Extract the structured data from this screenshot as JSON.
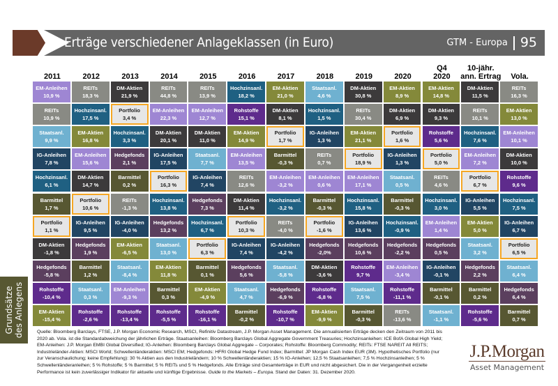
{
  "header": {
    "title": "Erträge verschiedener Anlageklassen (in Euro)",
    "series_label": "GTM - Europa",
    "page_number": "95"
  },
  "side_tab": "Grundsätze des Anlegens",
  "colors": {
    "EM-Anleihen": "#9e86d3",
    "REITs": "#898a84",
    "DM-Aktien": "#3c3a3b",
    "Hochzinsanl.": "#1f6082",
    "Staatsanl.": "#6fb1d0",
    "IG-Anleihen": "#214563",
    "Barmittel": "#575732",
    "Portfolio": "#e6e6e6",
    "Hedgefonds": "#5b3f5e",
    "Rohstoffe": "#5e2b8c",
    "EM-Aktien": "#84893a",
    "portfolio_border": "#f5a623",
    "header_brown": "#6b3a29",
    "header_grey": "#646464"
  },
  "chart_data": {
    "type": "table",
    "title": "Erträge verschiedener Anlageklassen (in Euro)",
    "columns": [
      "2011",
      "2012",
      "2013",
      "2014",
      "2015",
      "2016",
      "2017",
      "2018",
      "2019",
      "2020",
      "Q4 2020",
      "10-jähr. ann. Ertrag",
      "Vola."
    ],
    "cells": [
      [
        {
          "asset": "EM-Anleihen",
          "value": "10,9 %"
        },
        {
          "asset": "REITs",
          "value": "10,9 %"
        },
        {
          "asset": "Staatsanl.",
          "value": "9,9 %"
        },
        {
          "asset": "IG-Anleihen",
          "value": "7,8 %"
        },
        {
          "asset": "Hochzinsanl.",
          "value": "6,1 %"
        },
        {
          "asset": "Barmittel",
          "value": "1,7 %"
        },
        {
          "asset": "Portfolio",
          "value": "1,1 %"
        },
        {
          "asset": "DM-Aktien",
          "value": "-1,8 %"
        },
        {
          "asset": "Hedgefonds",
          "value": "-5,8 %"
        },
        {
          "asset": "Rohstoffe",
          "value": "-10,4 %"
        },
        {
          "asset": "EM-Aktien",
          "value": "-15,4 %"
        }
      ],
      [
        {
          "asset": "REITs",
          "value": "18,3 %"
        },
        {
          "asset": "Hochzinsanl.",
          "value": "17,5 %"
        },
        {
          "asset": "EM-Aktien",
          "value": "16,8 %"
        },
        {
          "asset": "EM-Anleihen",
          "value": "15,6 %"
        },
        {
          "asset": "DM-Aktien",
          "value": "14,7 %"
        },
        {
          "asset": "Portfolio",
          "value": "10,6 %"
        },
        {
          "asset": "IG-Anleihen",
          "value": "9,5 %"
        },
        {
          "asset": "Hedgefonds",
          "value": "1,9 %"
        },
        {
          "asset": "Barmittel",
          "value": "1,2 %"
        },
        {
          "asset": "Staatsanl.",
          "value": "0,3 %"
        },
        {
          "asset": "Rohstoffe",
          "value": "-2,6 %"
        }
      ],
      [
        {
          "asset": "DM-Aktien",
          "value": "21,9 %"
        },
        {
          "asset": "Portfolio",
          "value": "3,4 %"
        },
        {
          "asset": "Hochzinsanl.",
          "value": "3,3 %"
        },
        {
          "asset": "Hedgefonds",
          "value": "2,1 %"
        },
        {
          "asset": "Barmittel",
          "value": "0,2 %"
        },
        {
          "asset": "REITs",
          "value": "-1,3 %"
        },
        {
          "asset": "IG-Anleihen",
          "value": "-4,0 %"
        },
        {
          "asset": "EM-Aktien",
          "value": "-6,5 %"
        },
        {
          "asset": "Staatsanl.",
          "value": "-8,4 %"
        },
        {
          "asset": "EM-Anleihen",
          "value": "-9,3 %"
        },
        {
          "asset": "Rohstoffe",
          "value": "-13,4 %"
        }
      ],
      [
        {
          "asset": "REITs",
          "value": "44,8 %"
        },
        {
          "asset": "EM-Anleihen",
          "value": "22,3 %"
        },
        {
          "asset": "DM-Aktien",
          "value": "20,1 %"
        },
        {
          "asset": "IG-Anleihen",
          "value": "17,5 %"
        },
        {
          "asset": "Portfolio",
          "value": "16,3 %"
        },
        {
          "asset": "Hochzinsanl.",
          "value": "13,8 %"
        },
        {
          "asset": "Hedgefonds",
          "value": "13,2 %"
        },
        {
          "asset": "Staatsanl.",
          "value": "13,0 %"
        },
        {
          "asset": "EM-Aktien",
          "value": "11,8 %"
        },
        {
          "asset": "Barmittel",
          "value": "0,3 %"
        },
        {
          "asset": "Rohstoffe",
          "value": "-5,5 %"
        }
      ],
      [
        {
          "asset": "REITs",
          "value": "13,9 %"
        },
        {
          "asset": "EM-Anleihen",
          "value": "12,7 %"
        },
        {
          "asset": "DM-Aktien",
          "value": "11,0 %"
        },
        {
          "asset": "Staatsanl.",
          "value": "7,7 %"
        },
        {
          "asset": "IG-Anleihen",
          "value": "7,4 %"
        },
        {
          "asset": "Hedgefonds",
          "value": "7,3 %"
        },
        {
          "asset": "Hochzinsanl.",
          "value": "6,7 %"
        },
        {
          "asset": "Portfolio",
          "value": "6,3 %"
        },
        {
          "asset": "Barmittel",
          "value": "0,1 %"
        },
        {
          "asset": "EM-Aktien",
          "value": "-4,9 %"
        },
        {
          "asset": "Rohstoffe",
          "value": "-16,1 %"
        }
      ],
      [
        {
          "asset": "Hochzinsanl.",
          "value": "18,2 %"
        },
        {
          "asset": "Rohstoffe",
          "value": "15,1 %"
        },
        {
          "asset": "EM-Aktien",
          "value": "14,9 %"
        },
        {
          "asset": "EM-Anleihen",
          "value": "13,5 %"
        },
        {
          "asset": "REITs",
          "value": "12,6 %"
        },
        {
          "asset": "DM-Aktien",
          "value": "11,4 %"
        },
        {
          "asset": "Portfolio",
          "value": "10,3 %"
        },
        {
          "asset": "IG-Anleihen",
          "value": "7,4 %"
        },
        {
          "asset": "Hedgefonds",
          "value": "5,6 %"
        },
        {
          "asset": "Staatsanl.",
          "value": "4,7 %"
        },
        {
          "asset": "Barmittel",
          "value": "-0,2 %"
        }
      ],
      [
        {
          "asset": "EM-Aktien",
          "value": "21,0 %"
        },
        {
          "asset": "DM-Aktien",
          "value": "8,1 %"
        },
        {
          "asset": "Portfolio",
          "value": "1,7 %"
        },
        {
          "asset": "Barmittel",
          "value": "-0,3 %"
        },
        {
          "asset": "EM-Anleihen",
          "value": "-3,2 %"
        },
        {
          "asset": "Hochzinsanl.",
          "value": "-3,2 %"
        },
        {
          "asset": "REITs",
          "value": "-4,0 %"
        },
        {
          "asset": "IG-Anleihen",
          "value": "-4,2 %"
        },
        {
          "asset": "Staatsanl.",
          "value": "-5,8 %"
        },
        {
          "asset": "Hedgefonds",
          "value": "-6,9 %"
        },
        {
          "asset": "Rohstoffe",
          "value": "-10,7 %"
        }
      ],
      [
        {
          "asset": "Staatsanl.",
          "value": "4,6 %"
        },
        {
          "asset": "Hochzinsanl.",
          "value": "1,5 %"
        },
        {
          "asset": "IG-Anleihen",
          "value": "1,3 %"
        },
        {
          "asset": "REITs",
          "value": "0,7 %"
        },
        {
          "asset": "EM-Anleihen",
          "value": "0,6 %"
        },
        {
          "asset": "Barmittel",
          "value": "-0,3 %"
        },
        {
          "asset": "Portfolio",
          "value": "-1,6 %"
        },
        {
          "asset": "Hedgefonds",
          "value": "-2,0%"
        },
        {
          "asset": "DM-Aktien",
          "value": "-3,6 %"
        },
        {
          "asset": "Rohstoffe",
          "value": "-6,8 %"
        },
        {
          "asset": "EM-Aktien",
          "value": "-9,9 %"
        }
      ],
      [
        {
          "asset": "DM-Aktien",
          "value": "30,8 %"
        },
        {
          "asset": "REITs",
          "value": "30,4 %"
        },
        {
          "asset": "EM-Aktien",
          "value": "21,1 %"
        },
        {
          "asset": "Portfolio",
          "value": "18,9 %"
        },
        {
          "asset": "EM-Anleihen",
          "value": "17,1 %"
        },
        {
          "asset": "Hochzinsanl.",
          "value": "15,8 %"
        },
        {
          "asset": "IG-Anleihen",
          "value": "13,6 %"
        },
        {
          "asset": "Hedgefonds",
          "value": "10,6 %"
        },
        {
          "asset": "Rohstoffe",
          "value": "9,7 %"
        },
        {
          "asset": "Staatsanl.",
          "value": "7,5 %"
        },
        {
          "asset": "Barmittel",
          "value": "-0,3 %"
        }
      ],
      [
        {
          "asset": "EM-Aktien",
          "value": "8,9 %"
        },
        {
          "asset": "DM-Aktien",
          "value": "6,9 %"
        },
        {
          "asset": "Portfolio",
          "value": "1,6 %"
        },
        {
          "asset": "IG-Anleihen",
          "value": "1,3 %"
        },
        {
          "asset": "Staatsanl.",
          "value": "0,5 %"
        },
        {
          "asset": "Barmittel",
          "value": "-0,3 %"
        },
        {
          "asset": "Hochzinsanl.",
          "value": "-0,9 %"
        },
        {
          "asset": "Hedgefonds",
          "value": "-2,2 %"
        },
        {
          "asset": "EM-Anleihen",
          "value": "-3,4 %"
        },
        {
          "asset": "Rohstoffe",
          "value": "-11,1 %"
        },
        {
          "asset": "REITs",
          "value": "-13,6 %"
        }
      ],
      [
        {
          "asset": "EM-Aktien",
          "value": "14,8 %"
        },
        {
          "asset": "DM-Aktien",
          "value": "9,3 %"
        },
        {
          "asset": "Rohstoffe",
          "value": "5,6 %"
        },
        {
          "asset": "Portfolio",
          "value": "5,0 %"
        },
        {
          "asset": "REITs",
          "value": "4,6 %"
        },
        {
          "asset": "Hochzinsanl.",
          "value": "3,0 %"
        },
        {
          "asset": "EM-Anleihen",
          "value": "1,4 %"
        },
        {
          "asset": "Hedgefonds",
          "value": "0,5 %"
        },
        {
          "asset": "IG-Anleihen",
          "value": "-0,1 %"
        },
        {
          "asset": "Barmittel",
          "value": "-0,1 %"
        },
        {
          "asset": "Staatsanl.",
          "value": "-1,1 %"
        }
      ],
      [
        {
          "asset": "DM-Aktien",
          "value": "11,5 %"
        },
        {
          "asset": "REITs",
          "value": "10,1 %"
        },
        {
          "asset": "Hochzinsanl.",
          "value": "7,6 %"
        },
        {
          "asset": "EM-Anleihen",
          "value": "7,2 %"
        },
        {
          "asset": "Portfolio",
          "value": "6,7 %"
        },
        {
          "asset": "IG-Anleihen",
          "value": "5,5 %"
        },
        {
          "asset": "EM-Aktien",
          "value": "5,0 %"
        },
        {
          "asset": "Staatsanl.",
          "value": "3,2 %"
        },
        {
          "asset": "Hedgefonds",
          "value": "2,2 %"
        },
        {
          "asset": "Barmittel",
          "value": "0,2 %"
        },
        {
          "asset": "Rohstoffe",
          "value": "-5,6 %"
        }
      ],
      [
        {
          "asset": "REITs",
          "value": "16,3 %"
        },
        {
          "asset": "EM-Aktien",
          "value": "13,0 %"
        },
        {
          "asset": "EM-Anleihen",
          "value": "10,1 %"
        },
        {
          "asset": "DM-Aktien",
          "value": "10,0 %"
        },
        {
          "asset": "Rohstoffe",
          "value": "9,6 %"
        },
        {
          "asset": "Hochzinsanl.",
          "value": "7,5 %"
        },
        {
          "asset": "IG-Anleihen",
          "value": "6,7 %"
        },
        {
          "asset": "Portfolio",
          "value": "6,5 %"
        },
        {
          "asset": "Staatsanl.",
          "value": "6,4 %"
        },
        {
          "asset": "Hedgefonds",
          "value": "6,4 %"
        },
        {
          "asset": "Barmittel",
          "value": "0,7 %"
        }
      ]
    ]
  },
  "footnote": {
    "text": "Quelle: Bloomberg Barclays, FTSE, J.P. Morgan Economic Research, MSCI, Refinitiv Datastream, J.P. Morgan Asset Management. Die annualisierten Erträge decken den Zeitraum von 2011 bis 2020 ab. Vola. ist die Standardabweichung der jährlichen Erträge. Staatsanleihen: Bloomberg Barclays Global Aggregate Government Treasuries; Hochzinsanleihen: ICE BofA Global High Yield; EM-Anleihen: J.P. Morgan EMBI Global Diversified; IG-Anleihen: Bloomberg Barclays Global Aggregate – Corporates; Rohstoffe: Bloomberg Commodity; REITs: FTSE NAREIT All REITS; Industrieländer-Aktien: MSCI World; Schwellenländeraktien: MSCI EM; Hedgefonds: HFRI Global Hedge Fund Index; Barmittel: JP Morgan Cash Index EUR (3M). Hypothetisches Portfolio (nur zur Veranschaulichung; keine Empfehlung): 30 % Aktien aus den Industrieländern; 10 % Schwellenländeraktien; 15 % IG-Anleihen; 12,5 % Staatsanleihen; 7,5 % Hochzinsanleihen; 5 % Schwellenländeranleihen; 5 % Rohstoffe; 5 % Barmittel; 5 % REITs und 5 % Hedgefonds. Alle Erträge sind Gesamterträge in EUR und nicht abgesichert. Die in der Vergangenheit erzielte Performance ist kein zuverlässiger Indikator für aktuelle und künftige Ergebnisse. ",
    "guide_italic": "Guide to the Markets – Europa.",
    "date_text": " Stand der Daten: 31. Dezember 2020."
  },
  "logo": {
    "main": "J.P.Morgan",
    "sub": "Asset Management"
  }
}
